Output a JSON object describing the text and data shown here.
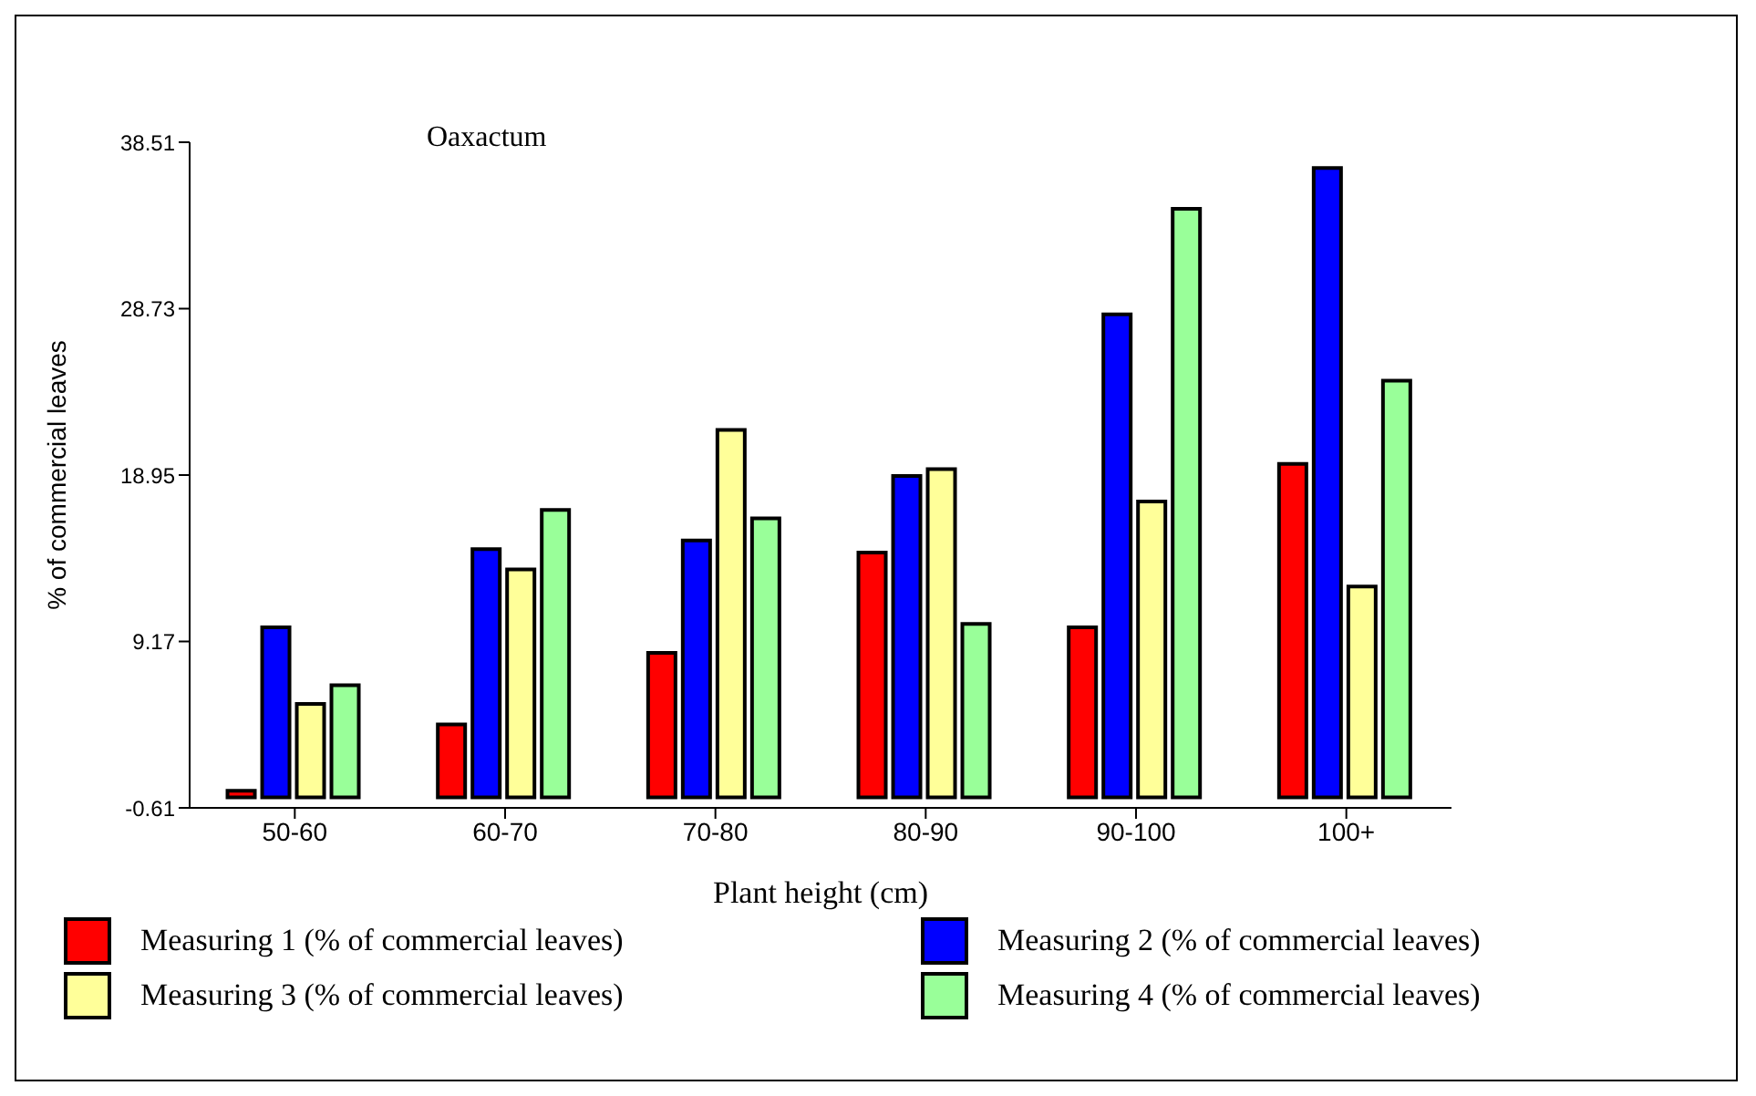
{
  "chart_data": {
    "type": "bar",
    "title": "Oaxactum",
    "xlabel": "Plant height (cm)",
    "ylabel": "% of commercial leaves",
    "categories": [
      "50-60",
      "60-70",
      "70-80",
      "80-90",
      "90-100",
      "100+"
    ],
    "series": [
      {
        "name": "Measuring 1 (% of commercial leaves)",
        "color": "#ff0000",
        "values": [
          0.4,
          4.3,
          8.5,
          14.4,
          10.0,
          19.6
        ]
      },
      {
        "name": "Measuring 2 (% of commercial leaves)",
        "color": "#0000ff",
        "values": [
          10.0,
          14.6,
          15.1,
          18.9,
          28.4,
          37.0
        ]
      },
      {
        "name": "Measuring 3 (% of commercial leaves)",
        "color": "#ffff99",
        "values": [
          5.5,
          13.4,
          21.6,
          19.3,
          17.4,
          12.4
        ]
      },
      {
        "name": "Measuring 4 (% of commercial leaves)",
        "color": "#99ff99",
        "values": [
          6.6,
          16.9,
          16.4,
          10.2,
          34.6,
          24.5
        ]
      }
    ],
    "ylim": [
      -0.61,
      38.51
    ],
    "yticks": [
      -0.61,
      9.17,
      18.95,
      28.73,
      38.51
    ],
    "grid": false,
    "legend": "bottom"
  }
}
